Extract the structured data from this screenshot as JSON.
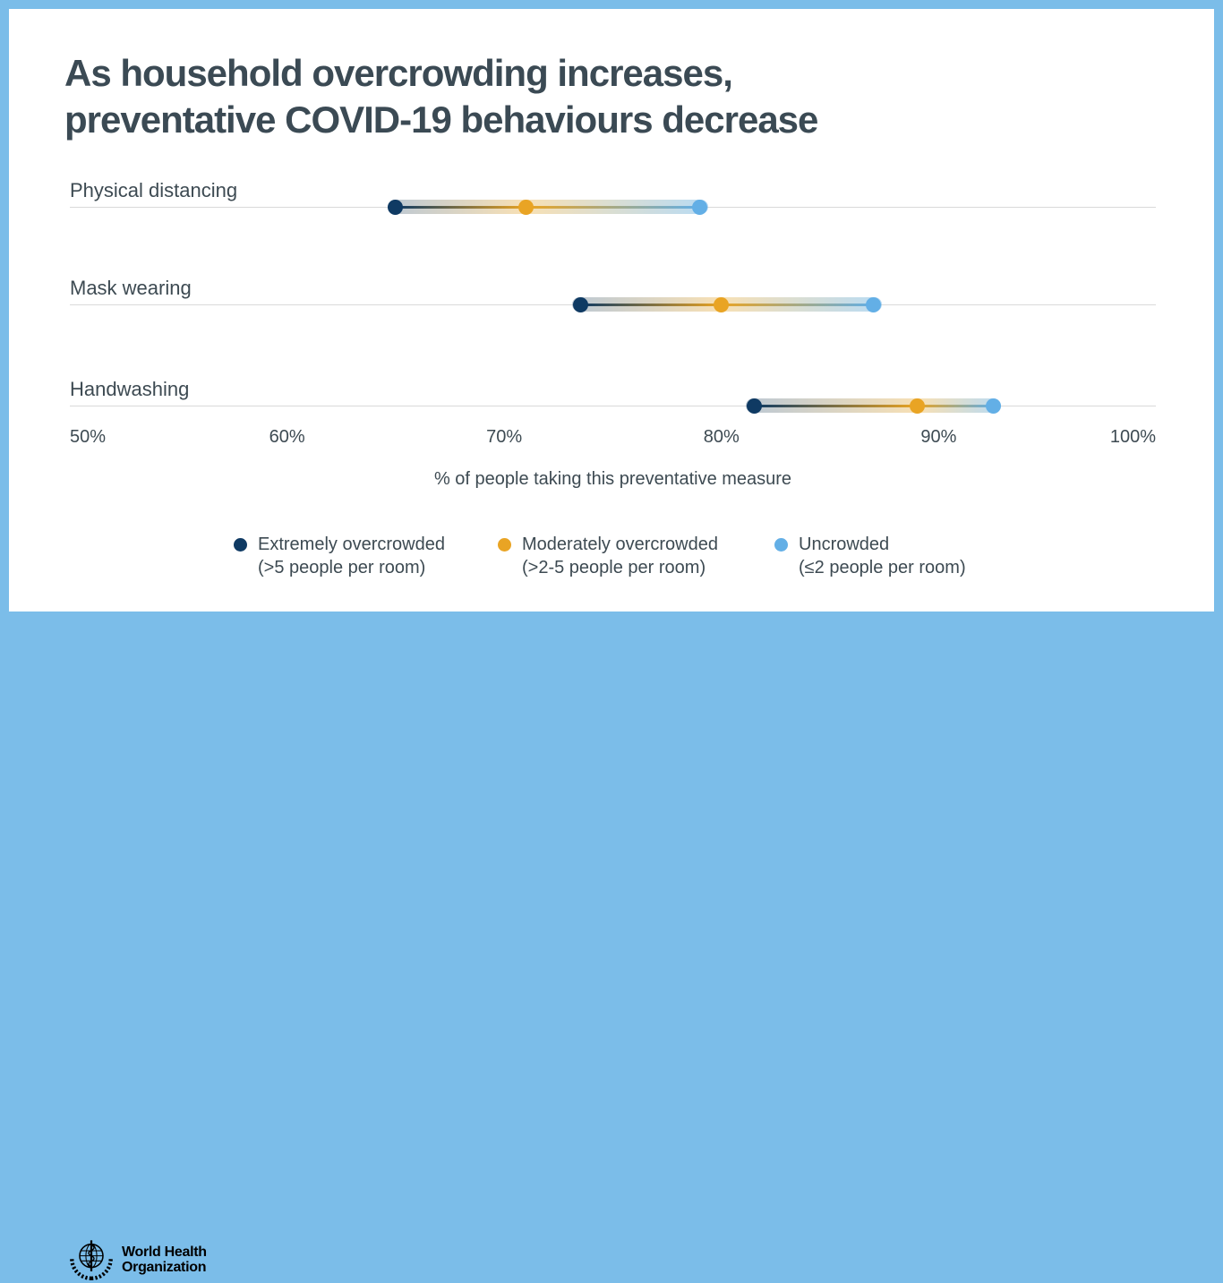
{
  "title": {
    "line1": "As household overcrowding increases,",
    "line2": "preventative COVID-19 behaviours decrease"
  },
  "chart_data": {
    "type": "scatter",
    "subtype": "dot-plot-dumbbell",
    "categories": [
      "Physical distancing",
      "Mask wearing",
      "Handwashing"
    ],
    "series": [
      {
        "name": "Extremely overcrowded (>5 people per room)",
        "color": "#0f3a63",
        "values": [
          65,
          73.5,
          81.5
        ]
      },
      {
        "name": "Moderately overcrowded (>2-5 people per room)",
        "color": "#e9a424",
        "values": [
          71,
          80,
          89
        ]
      },
      {
        "name": "Uncrowded (≤2 people per room)",
        "color": "#63afe6",
        "values": [
          79,
          87,
          92.5
        ]
      }
    ],
    "xlabel": "% of people taking this preventative measure",
    "xlim": [
      50,
      100
    ],
    "ticks": [
      "50%",
      "60%",
      "70%",
      "80%",
      "90%",
      "100%"
    ],
    "tick_values": [
      50,
      60,
      70,
      80,
      90,
      100
    ],
    "grid": "per-row horizontal gridlines",
    "legend_position": "bottom"
  },
  "legend": [
    {
      "label": "Extremely overcrowded",
      "sub": "(>5 people per room)",
      "color": "#0f3a63"
    },
    {
      "label": "Moderately overcrowded",
      "sub": "(>2-5 people per room)",
      "color": "#e9a424"
    },
    {
      "label": "Uncrowded",
      "sub": "(≤2 people per room)",
      "color": "#63afe6"
    }
  ],
  "footer": {
    "org_line1": "World Health",
    "org_line2": "Organization"
  },
  "colors": {
    "frame": "#7bbde9",
    "card": "#ffffff",
    "title": "#3b4a54",
    "text": "#3d4a52",
    "gridline": "#d9d9d9",
    "navy": "#0f3a63",
    "orange": "#e9a424",
    "light_blue": "#63afe6",
    "logo": "#000000"
  }
}
